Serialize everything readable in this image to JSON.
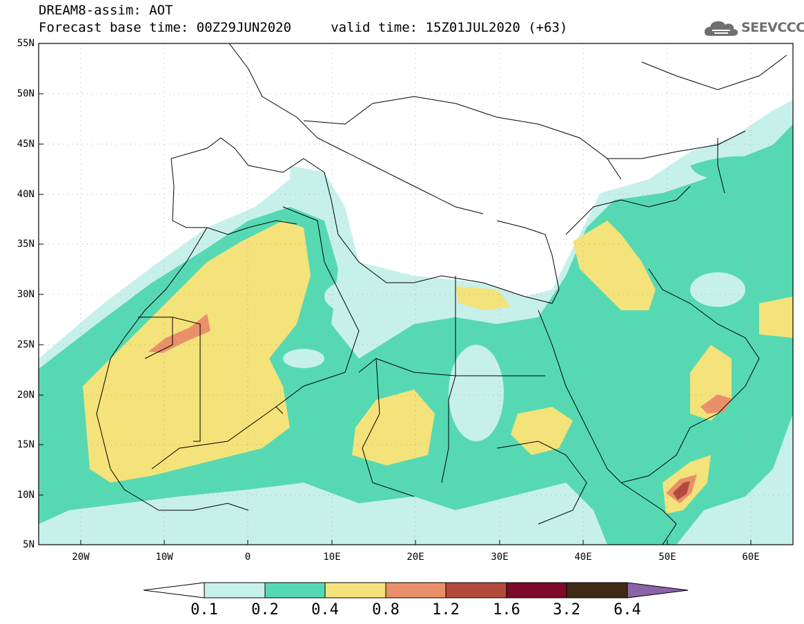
{
  "title": {
    "line1": "DREAM8-assim: AOT",
    "line2": "Forecast base time: 00Z29JUN2020     valid time: 15Z01JUL2020 (+63)"
  },
  "logo": {
    "icon": "cloud-icon",
    "text": "SEEVCCC"
  },
  "map": {
    "lat_labels": [
      "55N",
      "50N",
      "45N",
      "40N",
      "35N",
      "30N",
      "25N",
      "20N",
      "15N",
      "10N",
      "5N"
    ],
    "lon_labels": [
      "20W",
      "10W",
      "0",
      "10E",
      "20E",
      "30E",
      "40E",
      "50E",
      "60E"
    ]
  },
  "colorbar": {
    "labels": [
      "0.1",
      "0.2",
      "0.4",
      "0.8",
      "1.2",
      "1.6",
      "3.2",
      "6.4"
    ],
    "colors": [
      "#ffffff",
      "#c7f0eb",
      "#56d9b3",
      "#f4e27a",
      "#e9906a",
      "#b24a3c",
      "#7c0a28",
      "#3f2a15",
      "#8a63a8"
    ]
  }
}
